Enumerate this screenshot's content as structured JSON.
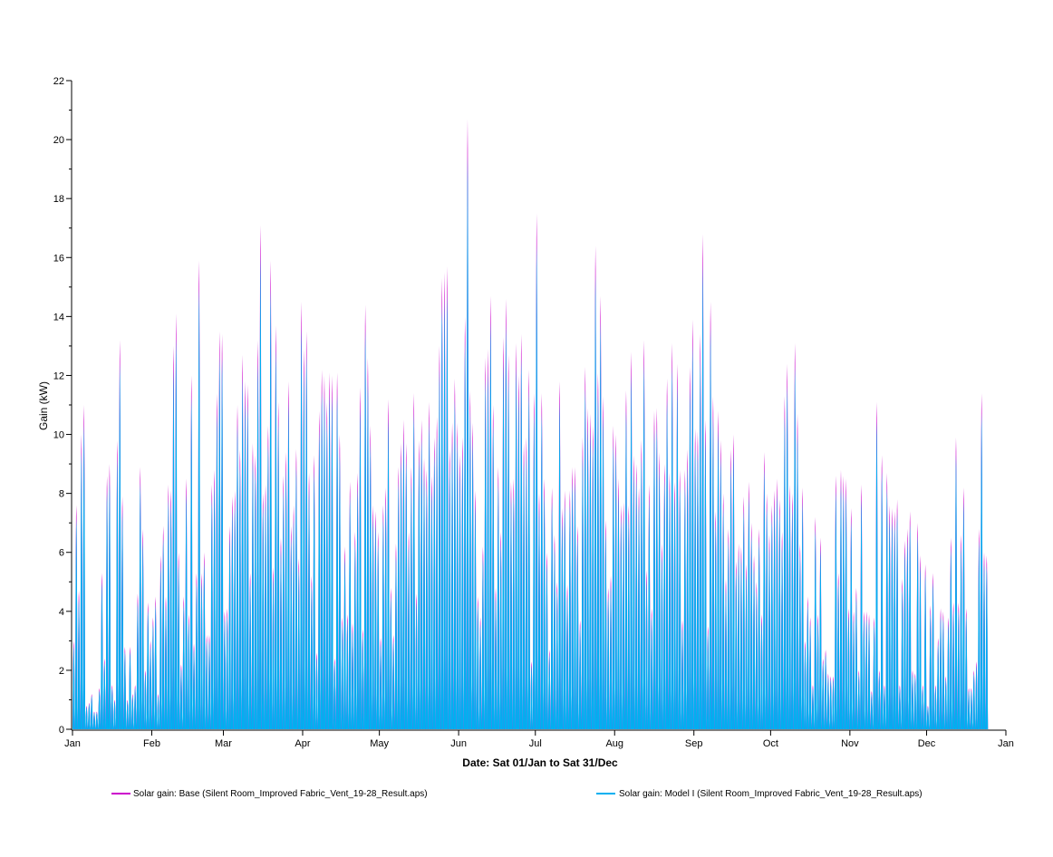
{
  "chart_data": {
    "type": "bar",
    "title": "",
    "xlabel": "Date: Sat 01/Jan to Sat 31/Dec",
    "ylabel": "Gain (kW)",
    "ylim": [
      0,
      22
    ],
    "y_ticks": [
      0,
      2,
      4,
      6,
      8,
      10,
      12,
      14,
      16,
      18,
      20,
      22
    ],
    "y_tick_labels": [
      "0",
      "2",
      "4",
      "6",
      "8",
      "10",
      "12",
      "14",
      "16",
      "18",
      "20",
      "22"
    ],
    "x_ticks": [
      {
        "label": "Jan",
        "day": 0
      },
      {
        "label": "Feb",
        "day": 31
      },
      {
        "label": "Mar",
        "day": 59
      },
      {
        "label": "Apr",
        "day": 90
      },
      {
        "label": "May",
        "day": 120
      },
      {
        "label": "Jun",
        "day": 151
      },
      {
        "label": "Jul",
        "day": 181
      },
      {
        "label": "Aug",
        "day": 212
      },
      {
        "label": "Sep",
        "day": 243
      },
      {
        "label": "Oct",
        "day": 273
      },
      {
        "label": "Nov",
        "day": 304
      },
      {
        "label": "Dec",
        "day": 334
      },
      {
        "label": "Jan",
        "day": 365
      }
    ],
    "x_range_days": [
      0,
      365
    ],
    "series": [
      {
        "name": "Solar gain: Base (Silent Room_Improved Fabric_Vent_19-28_Result.aps)",
        "color": "#cc00cc",
        "daily_peaks": [
          3.0,
          7.6,
          4.7,
          10.0,
          11.0,
          0.8,
          0.9,
          1.2,
          0.6,
          0.6,
          1.4,
          5.3,
          2.4,
          8.6,
          9.0,
          1.5,
          1.0,
          9.8,
          13.2,
          7.9,
          2.8,
          1.0,
          2.8,
          1.2,
          1.5,
          4.6,
          8.9,
          6.8,
          2.0,
          4.3,
          3.0,
          3.8,
          4.5,
          1.2,
          5.9,
          6.9,
          4.5,
          8.3,
          8.1,
          13.0,
          14.1,
          6.0,
          2.2,
          4.5,
          8.5,
          3.9,
          12.0,
          2.9,
          5.3,
          15.9,
          5.3,
          6.0,
          3.2,
          3.2,
          8.3,
          8.8,
          11.4,
          13.5,
          13.4,
          4.0,
          4.1,
          6.9,
          7.9,
          8.1,
          11.0,
          9.5,
          12.7,
          11.8,
          11.7,
          5.3,
          9.7,
          9.3,
          13.2,
          17.1,
          8.0,
          8.3,
          10.3,
          15.9,
          5.5,
          13.7,
          11.1,
          6.5,
          8.6,
          9.4,
          11.8,
          6.9,
          7.6,
          9.5,
          5.8,
          14.5,
          12.9,
          13.5,
          8.7,
          5.2,
          9.3,
          2.6,
          10.8,
          12.2,
          12.0,
          11.1,
          12.1,
          12.0,
          2.4,
          12.1,
          10.0,
          3.8,
          6.2,
          3.9,
          8.4,
          3.6,
          6.7,
          8.7,
          11.6,
          3.4,
          14.4,
          12.6,
          10.3,
          7.6,
          7.4,
          6.7,
          3.1,
          7.6,
          8.2,
          11.2,
          4.8,
          3.2,
          6.3,
          8.9,
          9.7,
          10.5,
          9.7,
          6.7,
          8.9,
          11.4,
          4.6,
          9.8,
          10.5,
          9.2,
          8.8,
          11.1,
          8.6,
          9.9,
          10.6,
          13.0,
          15.3,
          15.5,
          15.7,
          9.5,
          10.4,
          11.9,
          10.4,
          9.3,
          9.9,
          14.0,
          20.7,
          11.5,
          10.4,
          8.1,
          4.5,
          3.8,
          6.2,
          12.6,
          12.9,
          14.7,
          11.0,
          4.8,
          8.9,
          6.7,
          13.3,
          14.6,
          12.7,
          8.4,
          8.5,
          13.1,
          12.0,
          13.4,
          9.7,
          9.9,
          12.2,
          2.3,
          11.4,
          17.5,
          8.0,
          11.4,
          8.5,
          6.0,
          2.7,
          8.2,
          6.6,
          5.0,
          11.8,
          7.5,
          8.1,
          4.9,
          8.1,
          8.9,
          8.9,
          6.9,
          3.7,
          9.9,
          12.3,
          10.9,
          10.7,
          10.3,
          16.4,
          12.1,
          14.7,
          11.3,
          7.1,
          4.8,
          5.2,
          10.3,
          10.0,
          8.5,
          7.6,
          7.7,
          11.5,
          7.6,
          12.8,
          9.3,
          9.0,
          8.2,
          9.8,
          13.2,
          5.4,
          8.3,
          4.1,
          10.8,
          10.9,
          9.4,
          6.3,
          9.0,
          11.9,
          8.7,
          13.1,
          8.4,
          12.4,
          8.8,
          3.7,
          8.8,
          9.5,
          12.3,
          13.9,
          10.2,
          10.1,
          13.4,
          16.8,
          10.5,
          3.5,
          14.5,
          11.3,
          7.4,
          10.8,
          9.8,
          8.0,
          5.1,
          6.8,
          9.5,
          10.0,
          5.7,
          6.3,
          6.2,
          7.9,
          5.6,
          8.4,
          7.0,
          5.9,
          5.0,
          6.8,
          3.9,
          9.4,
          8.0,
          6.6,
          7.6,
          8.1,
          8.5,
          7.8,
          6.7,
          11.3,
          12.4,
          8.3,
          8.0,
          13.1,
          10.7,
          6.3,
          8.2,
          3.0,
          4.5,
          3.8,
          1.5,
          7.2,
          3.9,
          6.5,
          2.4,
          2.7,
          1.9,
          1.8,
          1.8,
          8.6,
          5.3,
          8.8,
          8.6,
          8.5,
          4.1,
          7.5,
          4.0,
          4.8,
          2.0,
          8.3,
          4.0,
          4.0,
          3.9,
          1.3,
          3.8,
          11.1,
          2.0,
          9.3,
          1.5,
          8.7,
          7.6,
          7.5,
          7.4,
          7.8,
          1.5,
          5.1,
          6.4,
          6.8,
          7.4,
          2.0,
          1.9,
          7.0,
          5.9,
          1.5,
          5.6,
          0.8,
          4.2,
          5.3,
          1.5,
          3.1,
          4.1,
          4.0,
          1.8,
          3.8,
          6.5,
          4.3,
          9.9,
          4.3,
          6.6,
          8.2,
          4.1,
          1.4,
          1.4,
          2.0,
          2.3,
          6.8,
          11.4,
          6.0,
          5.9
        ],
        "values_note": "Base series plotted as hourly stacked bars; daily_peaks approximate the visible daily maxima."
      },
      {
        "name": "Solar gain: Model I  (Silent Room_Improved Fabric_Vent_19-28_Result.aps)",
        "color": "#00b0f0",
        "ratio_to_base": 0.94,
        "values_note": "Model I series values are approximately 94% of Base at every timestep (cyan drawn over magenta)."
      }
    ],
    "legend": "bottom",
    "grid": false
  }
}
